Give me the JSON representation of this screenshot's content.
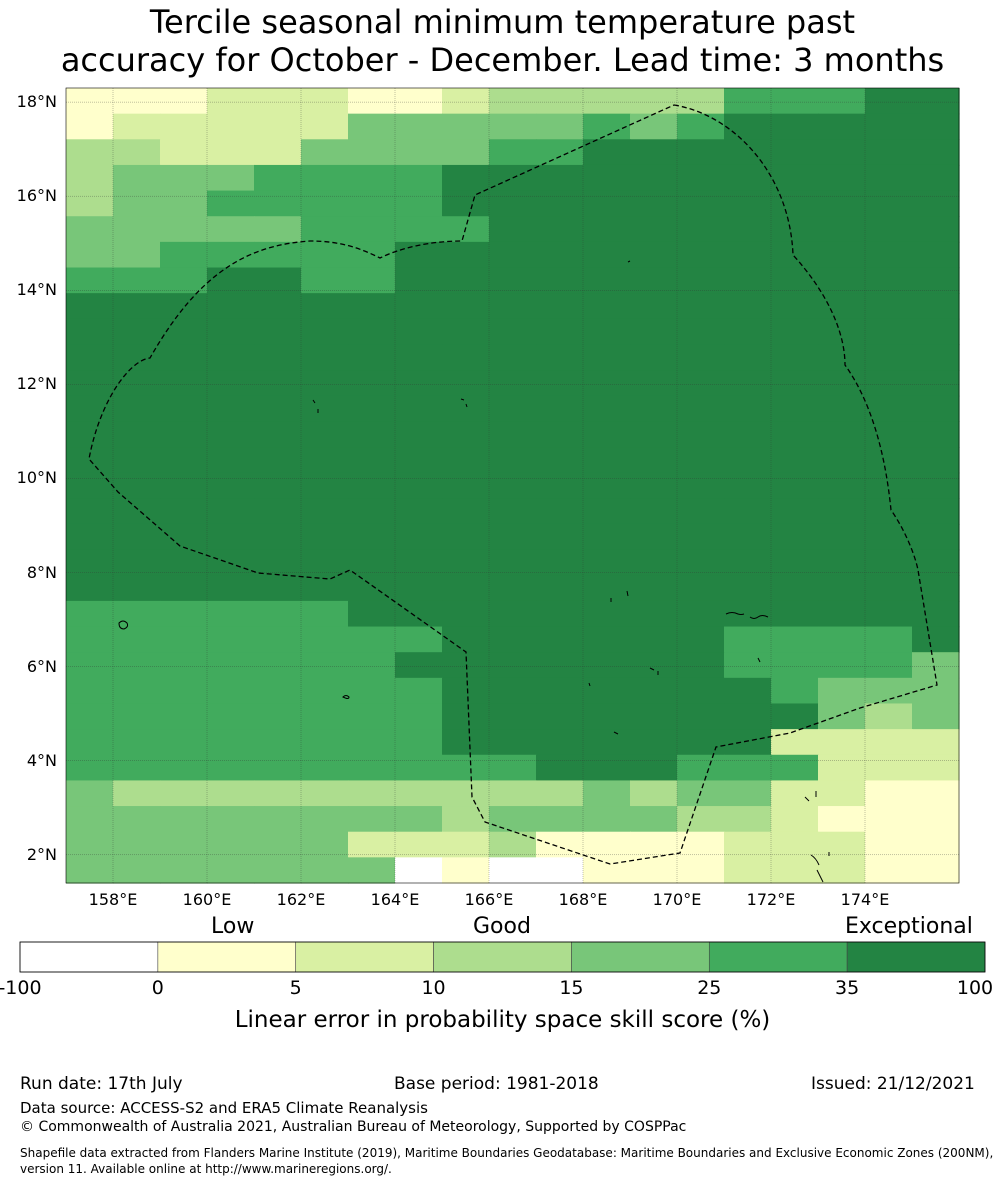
{
  "title_line1": "Tercile seasonal minimum temperature past",
  "title_line2": "accuracy for October - December. Lead time: 3 months",
  "lat_labels": [
    "18°N",
    "16°N",
    "14°N",
    "12°N",
    "10°N",
    "8°N",
    "6°N",
    "4°N",
    "2°N"
  ],
  "lon_labels": [
    "158°E",
    "160°E",
    "162°E",
    "164°E",
    "166°E",
    "168°E",
    "170°E",
    "172°E",
    "174°E"
  ],
  "colorbar": {
    "categories": {
      "low": "Low",
      "good": "Good",
      "exceptional": "Exceptional"
    },
    "ticks": [
      "-100",
      "0",
      "5",
      "10",
      "15",
      "25",
      "35",
      "100"
    ],
    "colors": [
      "#ffffff",
      "#ffffcc",
      "#d9f0a3",
      "#addd8e",
      "#78c679",
      "#41ab5d",
      "#238443"
    ],
    "title": "Linear error in probability space skill score (%)"
  },
  "footer": {
    "run_date": "Run date: 17th July",
    "base_period": "Base period: 1981-2018",
    "issued": "Issued: 21/12/2021",
    "data_source": "Data source: ACCESS-S2 and ERA5 Climate Reanalysis",
    "copyright": "© Commonwealth of Australia 2021, Australian Bureau of Meteorology, Supported by COSPPac",
    "shapefile_1": "Shapefile data extracted from Flanders Marine Institute (2019), Maritime Boundaries Geodatabase: Maritime Boundaries and Exclusive Economic Zones (200NM),",
    "shapefile_2": "version 11. Available online at http://www.marineregions.org/."
  },
  "map": {
    "lon_range": [
      157,
      176
    ],
    "lat_range": [
      1.4,
      18.3
    ],
    "skill_grid": [
      "1112221123333355566",
      "1222224444454566666",
      "3322244445566666666",
      "3444555566666666666",
      "3445555566666666666",
      "4444455556666666666",
      "4455555666666666666",
      "5556655666666666666",
      "6666666666666666666",
      "6666666666666666666",
      "6666666666666666666",
      "6666666666666666666",
      "6666666666666666666",
      "6666666666666666666",
      "6666666666666666666",
      "6666666666666666666",
      "6666666666666666666",
      "6666666666666666666",
      "6666666666666666666",
      "6666666666666666666",
      "5555556666666666666",
      "5555555566666655556",
      "5555555666666655554",
      "5555555566666665444",
      "5555555566666666434",
      "5555555566666662222",
      "5555555555666555222",
      "4333333333343442211",
      "4444444434444332111",
      "4444442223111122211",
      "4444444010011122211"
    ]
  }
}
